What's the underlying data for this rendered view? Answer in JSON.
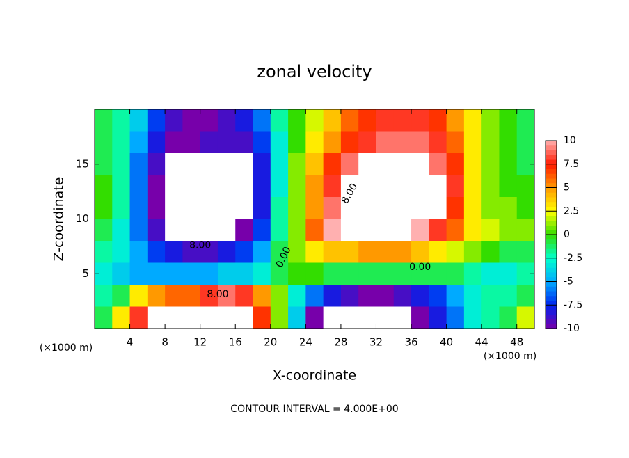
{
  "chart_data": {
    "type": "contour",
    "title": "zonal velocity",
    "xlabel": "X-coordinate",
    "ylabel": "Z-coordinate",
    "x_unit_label": "(×1000 m)",
    "footer": "CONTOUR INTERVAL = 4.000E+00",
    "contour_labels": [
      "8.00",
      "0.00",
      "0.00",
      "8.00",
      "8.00"
    ],
    "xlim": [
      0,
      50
    ],
    "ylim": [
      0,
      20
    ],
    "xticks": [
      4,
      8,
      12,
      16,
      20,
      24,
      28,
      32,
      36,
      40,
      44,
      48
    ],
    "yticks": [
      5,
      10,
      15
    ],
    "x": [
      1,
      3,
      5,
      7,
      9,
      11,
      13,
      15,
      17,
      19,
      21,
      23,
      25,
      27,
      29,
      31,
      33,
      35,
      37,
      39,
      41,
      43,
      45,
      47,
      49
    ],
    "y": [
      19,
      17,
      15,
      13,
      11,
      9,
      7,
      5,
      3,
      1
    ],
    "z": [
      [
        -1,
        -2,
        -4,
        -7,
        -9,
        -10,
        -10,
        -9,
        -8,
        -6,
        -2,
        0,
        2,
        4,
        6,
        7,
        8,
        8,
        8,
        7,
        5,
        3,
        1,
        0,
        -1
      ],
      [
        -1,
        -2,
        -5,
        -8,
        -10,
        -10,
        -9,
        -9,
        -9,
        -7,
        -3,
        0,
        3,
        5,
        7,
        8,
        9,
        9,
        9,
        8,
        6,
        3,
        1,
        0,
        -1
      ],
      [
        -1,
        -2,
        -6,
        -9,
        -12,
        -12,
        -12,
        -12,
        -12,
        -8,
        -3,
        1,
        4,
        7,
        9,
        11,
        11,
        11,
        11,
        9,
        7,
        3,
        1,
        0,
        -1
      ],
      [
        0,
        -2,
        -6,
        -10,
        -13,
        -13,
        -13,
        -13,
        -12,
        -8,
        -3,
        1,
        5,
        8,
        11,
        12,
        12,
        12,
        12,
        11,
        8,
        3,
        1,
        0,
        0
      ],
      [
        0,
        -2,
        -6,
        -10,
        -13,
        -14,
        -14,
        -13,
        -12,
        -8,
        -2,
        1,
        5,
        9,
        12,
        13,
        13,
        13,
        12,
        11,
        7,
        3,
        1,
        1,
        0
      ],
      [
        -1,
        -3,
        -6,
        -9,
        -12,
        -12,
        -12,
        -11,
        -10,
        -7,
        -2,
        1,
        6,
        10,
        12,
        12,
        11,
        11,
        10,
        8,
        6,
        3,
        2,
        1,
        1
      ],
      [
        -2,
        -3,
        -5,
        -7,
        -8,
        -9,
        -9,
        -8,
        -7,
        -5,
        -1,
        1,
        3,
        4,
        4,
        5,
        5,
        5,
        4,
        3,
        2,
        1,
        0,
        -1,
        -1
      ],
      [
        -3,
        -4,
        -5,
        -5,
        -5,
        -5,
        -5,
        -4,
        -4,
        -3,
        -1,
        0,
        0,
        -1,
        -1,
        -1,
        -1,
        -1,
        -1,
        -1,
        -1,
        -2,
        -3,
        -3,
        -2
      ],
      [
        -2,
        -1,
        3,
        5,
        6,
        6,
        8,
        9,
        8,
        5,
        1,
        -3,
        -6,
        -8,
        -9,
        -10,
        -10,
        -9,
        -8,
        -7,
        -5,
        -3,
        -2,
        -2,
        -1
      ],
      [
        -1,
        3,
        8,
        11,
        13,
        13,
        14,
        13,
        12,
        7,
        1,
        -4,
        -10,
        -12,
        -13,
        -13,
        -12,
        -11,
        -10,
        -8,
        -6,
        -3,
        -2,
        -1,
        2
      ]
    ],
    "colorbar": {
      "lim": [
        -10,
        10
      ],
      "ticks": [
        10,
        7.5,
        5,
        2.5,
        0,
        -2.5,
        -5,
        -7.5,
        -10
      ],
      "colors": [
        "#ffb0b0",
        "#ff1a00",
        "#ff9900",
        "#ffff00",
        "#33dd00",
        "#00ffcc",
        "#00aaff",
        "#0022ee",
        "#7700aa"
      ],
      "out_of_range_color": "#ffffff"
    }
  }
}
